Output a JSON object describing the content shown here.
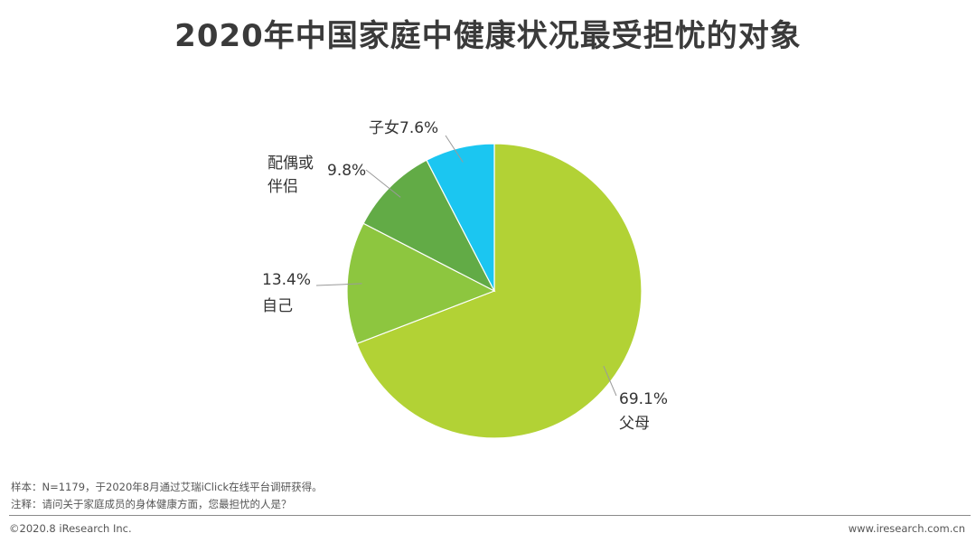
{
  "title": "2020年中国家庭中健康状况最受担忧的对象",
  "chart_data": {
    "type": "pie",
    "title": "2020年中国家庭中健康状况最受担忧的对象",
    "start_angle_deg": 0,
    "direction": "clockwise",
    "slices": [
      {
        "label": "父母",
        "value": 69.1,
        "display": "69.1%",
        "color": "#b2d235"
      },
      {
        "label": "自己",
        "value": 13.4,
        "display": "13.4%",
        "color": "#8dc63f"
      },
      {
        "label": "配偶或伴侣",
        "value": 9.8,
        "display": "9.8%",
        "color": "#62ab46"
      },
      {
        "label": "子女",
        "value": 7.6,
        "display": "7.6%",
        "color": "#1bc6f1"
      }
    ]
  },
  "notes": {
    "sample": "样本：N=1179，于2020年8月通过艾瑞iClick在线平台调研获得。",
    "question": "注释：请问关于家庭成员的身体健康方面，您最担忧的人是？"
  },
  "footer": {
    "copyright": "©2020.8 iResearch Inc.",
    "website": "www.iresearch.com.cn"
  }
}
